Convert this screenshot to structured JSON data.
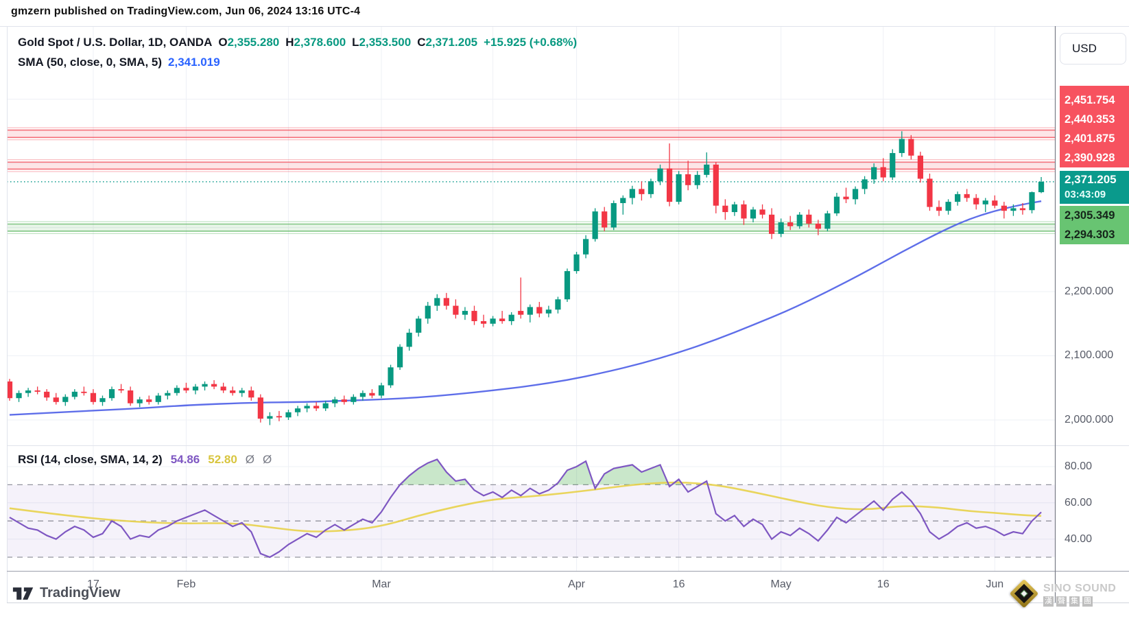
{
  "attribution": "gmzern published on TradingView.com, Jun 06, 2024 13:16 UTC-4",
  "header": {
    "symbol_title": "Gold Spot / U.S. Dollar, 1D, OANDA",
    "ohlc": {
      "o_label": "O",
      "o": "2,355.280",
      "h_label": "H",
      "h": "2,378.600",
      "l_label": "L",
      "l": "2,353.500",
      "c_label": "C",
      "c": "2,371.205",
      "change": "+15.925 (+0.68%)"
    },
    "sma_label": "SMA (50, close, 0, SMA, 5)",
    "sma_value": "2,341.019"
  },
  "rsi_header": {
    "label": "RSI (14, close, SMA, 14, 2)",
    "rsi_value": "54.86",
    "rsi_ma_value": "52.80",
    "empty1": "Ø",
    "empty2": "Ø"
  },
  "axis": {
    "currency_button": "USD",
    "red_labels": [
      "2,451.754",
      "2,440.353",
      "2,401.875",
      "2,390.928"
    ],
    "current_price": "2,371.205",
    "countdown": "03:43:09",
    "green_labels": [
      "2,305.349",
      "2,294.303"
    ],
    "gray_labels": [
      "2,200.000",
      "2,100.000",
      "2,000.000"
    ],
    "rsi_labels": [
      "80.00",
      "60.00",
      "40.00"
    ]
  },
  "footer": {
    "tradingview": "TradingView",
    "watermark_brand": "SINO SOUND",
    "watermark_cn": [
      "漢",
      "聲",
      "集",
      "團"
    ]
  },
  "colors": {
    "up": "#089981",
    "down": "#f23645",
    "sma50": "#5566e8",
    "rsi": "#7e57c2",
    "rsi_ma": "#e8d24a",
    "zone_red": "#f23645",
    "zone_green": "#4caf50",
    "current_line": "#0a9a8c",
    "grid": "#eef0f6",
    "guide_dash": "#70737e",
    "label_red_bg": "#f7525f",
    "label_green_bg": "#68c472",
    "label_current_bg": "#0a9a8c"
  },
  "chart_data": [
    {
      "type": "candlestick",
      "title": "Gold Spot / U.S. Dollar, 1D, OANDA",
      "ylabel": "USD",
      "ylim": [
        1960,
        2615
      ],
      "grid_prices": [
        2000,
        2100,
        2200,
        2300,
        2400,
        2500
      ],
      "levels": {
        "red_zones": [
          [
            2451.754,
            2440.353
          ],
          [
            2401.875,
            2390.928
          ]
        ],
        "green_zones": [
          [
            2305.349,
            2294.303
          ]
        ],
        "current": 2371.205
      },
      "xticks": [
        {
          "i": 9,
          "label": "17"
        },
        {
          "i": 19,
          "label": "Feb"
        },
        {
          "i": 40,
          "label": "Mar"
        },
        {
          "i": 61,
          "label": "Apr"
        },
        {
          "i": 72,
          "label": "16"
        },
        {
          "i": 83,
          "label": "May"
        },
        {
          "i": 94,
          "label": "16"
        },
        {
          "i": 106,
          "label": "Jun"
        }
      ],
      "minor_grid": [
        30,
        52
      ],
      "sma50_points": [
        [
          0,
          2008
        ],
        [
          8,
          2014
        ],
        [
          14,
          2018
        ],
        [
          19,
          2023
        ],
        [
          26,
          2027
        ],
        [
          32,
          2028
        ],
        [
          36,
          2030
        ],
        [
          40,
          2032
        ],
        [
          44,
          2035
        ],
        [
          48,
          2040
        ],
        [
          52,
          2046
        ],
        [
          56,
          2053
        ],
        [
          60,
          2062
        ],
        [
          64,
          2074
        ],
        [
          68,
          2088
        ],
        [
          72,
          2105
        ],
        [
          76,
          2125
        ],
        [
          80,
          2148
        ],
        [
          84,
          2172
        ],
        [
          88,
          2200
        ],
        [
          92,
          2230
        ],
        [
          96,
          2262
        ],
        [
          100,
          2292
        ],
        [
          103,
          2312
        ],
        [
          106,
          2326
        ],
        [
          109,
          2336
        ],
        [
          111,
          2341
        ]
      ],
      "candles": [
        [
          2060,
          2064,
          2030,
          2034
        ],
        [
          2034,
          2046,
          2028,
          2042
        ],
        [
          2042,
          2050,
          2036,
          2046
        ],
        [
          2046,
          2052,
          2040,
          2044
        ],
        [
          2044,
          2048,
          2030,
          2035
        ],
        [
          2035,
          2042,
          2024,
          2028
        ],
        [
          2028,
          2040,
          2022,
          2036
        ],
        [
          2036,
          2048,
          2032,
          2044
        ],
        [
          2044,
          2052,
          2038,
          2042
        ],
        [
          2042,
          2048,
          2024,
          2028
        ],
        [
          2028,
          2038,
          2022,
          2034
        ],
        [
          2034,
          2052,
          2030,
          2048
        ],
        [
          2048,
          2056,
          2042,
          2046
        ],
        [
          2046,
          2052,
          2022,
          2026
        ],
        [
          2026,
          2036,
          2020,
          2032
        ],
        [
          2032,
          2038,
          2024,
          2028
        ],
        [
          2028,
          2042,
          2024,
          2038
        ],
        [
          2038,
          2046,
          2032,
          2042
        ],
        [
          2042,
          2054,
          2038,
          2050
        ],
        [
          2050,
          2058,
          2042,
          2046
        ],
        [
          2046,
          2056,
          2040,
          2052
        ],
        [
          2052,
          2060,
          2046,
          2056
        ],
        [
          2056,
          2062,
          2048,
          2052
        ],
        [
          2052,
          2058,
          2042,
          2046
        ],
        [
          2046,
          2052,
          2038,
          2042
        ],
        [
          2042,
          2050,
          2036,
          2046
        ],
        [
          2046,
          2052,
          2030,
          2035
        ],
        [
          2035,
          2040,
          1996,
          2002
        ],
        [
          2002,
          2012,
          1992,
          2006
        ],
        [
          2006,
          2014,
          1998,
          2004
        ],
        [
          2004,
          2016,
          2000,
          2012
        ],
        [
          2012,
          2022,
          2006,
          2018
        ],
        [
          2018,
          2026,
          2012,
          2022
        ],
        [
          2022,
          2028,
          2014,
          2018
        ],
        [
          2018,
          2030,
          2014,
          2026
        ],
        [
          2026,
          2036,
          2020,
          2032
        ],
        [
          2032,
          2038,
          2024,
          2028
        ],
        [
          2028,
          2040,
          2024,
          2036
        ],
        [
          2036,
          2046,
          2030,
          2042
        ],
        [
          2042,
          2048,
          2034,
          2038
        ],
        [
          2038,
          2058,
          2034,
          2054
        ],
        [
          2054,
          2086,
          2050,
          2082
        ],
        [
          2082,
          2118,
          2078,
          2114
        ],
        [
          2114,
          2142,
          2108,
          2136
        ],
        [
          2136,
          2162,
          2130,
          2158
        ],
        [
          2158,
          2184,
          2150,
          2178
        ],
        [
          2178,
          2196,
          2170,
          2190
        ],
        [
          2190,
          2198,
          2172,
          2178
        ],
        [
          2178,
          2188,
          2158,
          2164
        ],
        [
          2164,
          2176,
          2156,
          2170
        ],
        [
          2170,
          2178,
          2148,
          2154
        ],
        [
          2154,
          2164,
          2144,
          2150
        ],
        [
          2150,
          2162,
          2146,
          2158
        ],
        [
          2158,
          2170,
          2150,
          2154
        ],
        [
          2154,
          2168,
          2148,
          2164
        ],
        [
          2170,
          2222,
          2158,
          2164
        ],
        [
          2164,
          2180,
          2152,
          2176
        ],
        [
          2176,
          2184,
          2160,
          2166
        ],
        [
          2166,
          2178,
          2160,
          2172
        ],
        [
          2172,
          2192,
          2166,
          2188
        ],
        [
          2188,
          2236,
          2184,
          2232
        ],
        [
          2232,
          2262,
          2228,
          2258
        ],
        [
          2258,
          2288,
          2252,
          2282
        ],
        [
          2282,
          2330,
          2278,
          2325
        ],
        [
          2325,
          2332,
          2294,
          2300
        ],
        [
          2300,
          2342,
          2296,
          2338
        ],
        [
          2338,
          2350,
          2320,
          2346
        ],
        [
          2346,
          2365,
          2336,
          2360
        ],
        [
          2360,
          2372,
          2342,
          2352
        ],
        [
          2352,
          2376,
          2346,
          2372
        ],
        [
          2372,
          2398,
          2366,
          2392
        ],
        [
          2392,
          2431,
          2333,
          2340
        ],
        [
          2340,
          2388,
          2336,
          2383
        ],
        [
          2383,
          2404,
          2358,
          2366
        ],
        [
          2366,
          2388,
          2360,
          2382
        ],
        [
          2382,
          2417,
          2378,
          2398
        ],
        [
          2398,
          2402,
          2322,
          2334
        ],
        [
          2334,
          2344,
          2312,
          2324
        ],
        [
          2324,
          2340,
          2318,
          2336
        ],
        [
          2336,
          2342,
          2304,
          2314
        ],
        [
          2314,
          2332,
          2308,
          2328
        ],
        [
          2328,
          2336,
          2314,
          2320
        ],
        [
          2320,
          2330,
          2282,
          2290
        ],
        [
          2290,
          2314,
          2285,
          2308
        ],
        [
          2308,
          2318,
          2296,
          2302
        ],
        [
          2302,
          2324,
          2298,
          2320
        ],
        [
          2320,
          2328,
          2300,
          2306
        ],
        [
          2306,
          2312,
          2288,
          2298
        ],
        [
          2298,
          2326,
          2294,
          2322
        ],
        [
          2322,
          2354,
          2318,
          2348
        ],
        [
          2348,
          2362,
          2338,
          2344
        ],
        [
          2344,
          2364,
          2336,
          2360
        ],
        [
          2360,
          2380,
          2352,
          2375
        ],
        [
          2375,
          2400,
          2368,
          2394
        ],
        [
          2394,
          2408,
          2372,
          2378
        ],
        [
          2378,
          2422,
          2374,
          2416
        ],
        [
          2416,
          2450,
          2410,
          2438
        ],
        [
          2438,
          2444,
          2406,
          2412
        ],
        [
          2412,
          2418,
          2370,
          2376
        ],
        [
          2376,
          2384,
          2326,
          2332
        ],
        [
          2332,
          2342,
          2318,
          2326
        ],
        [
          2326,
          2344,
          2320,
          2340
        ],
        [
          2340,
          2356,
          2334,
          2352
        ],
        [
          2352,
          2360,
          2340,
          2346
        ],
        [
          2346,
          2352,
          2328,
          2336
        ],
        [
          2336,
          2346,
          2324,
          2342
        ],
        [
          2342,
          2350,
          2330,
          2334
        ],
        [
          2334,
          2340,
          2314,
          2326
        ],
        [
          2326,
          2336,
          2318,
          2330
        ],
        [
          2330,
          2338,
          2320,
          2327
        ],
        [
          2327,
          2356,
          2322,
          2355
        ],
        [
          2355,
          2378.6,
          2353.5,
          2371.2
        ]
      ]
    },
    {
      "type": "line",
      "title": "RSI (14, close, SMA, 14, 2)",
      "ylim": [
        20,
        100
      ],
      "yticks": [
        80,
        60,
        40
      ],
      "guides": [
        70,
        50,
        30
      ],
      "band": [
        70,
        30
      ],
      "rsi": [
        52,
        49,
        46,
        45,
        42,
        40,
        44,
        47,
        45,
        41,
        43,
        50,
        47,
        40,
        42,
        41,
        45,
        47,
        50,
        52,
        54,
        56,
        53,
        50,
        47,
        49,
        44,
        32,
        30,
        33,
        37,
        40,
        43,
        41,
        45,
        48,
        45,
        48,
        51,
        49,
        55,
        63,
        70,
        75,
        79,
        82,
        84,
        77,
        72,
        73,
        67,
        64,
        66,
        63,
        67,
        64,
        68,
        65,
        67,
        71,
        78,
        80,
        83,
        68,
        76,
        79,
        80,
        81,
        77,
        79,
        81,
        69,
        73,
        66,
        69,
        72,
        54,
        50,
        53,
        47,
        51,
        48,
        40,
        44,
        42,
        46,
        43,
        39,
        45,
        52,
        49,
        53,
        57,
        61,
        56,
        62,
        66,
        61,
        54,
        44,
        40,
        43,
        47,
        49,
        46,
        47,
        45,
        42,
        44,
        43,
        50,
        54.86
      ],
      "rsi_sma_points": [
        [
          0,
          57
        ],
        [
          6,
          53
        ],
        [
          12,
          50
        ],
        [
          18,
          48.5
        ],
        [
          24,
          49
        ],
        [
          28,
          46.5
        ],
        [
          32,
          44
        ],
        [
          36,
          44.5
        ],
        [
          40,
          47
        ],
        [
          44,
          53
        ],
        [
          48,
          58
        ],
        [
          52,
          62
        ],
        [
          56,
          63.5
        ],
        [
          60,
          65.5
        ],
        [
          64,
          68
        ],
        [
          68,
          70.5
        ],
        [
          72,
          71.5
        ],
        [
          76,
          70
        ],
        [
          80,
          66
        ],
        [
          84,
          61.5
        ],
        [
          88,
          57.5
        ],
        [
          92,
          56
        ],
        [
          96,
          58.5
        ],
        [
          100,
          57.5
        ],
        [
          103,
          55.5
        ],
        [
          106,
          54.5
        ],
        [
          109,
          53.2
        ],
        [
          111,
          52.8
        ]
      ]
    }
  ]
}
